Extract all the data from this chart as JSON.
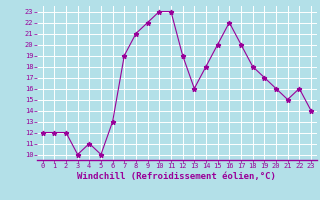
{
  "x": [
    0,
    1,
    2,
    3,
    4,
    5,
    6,
    7,
    8,
    9,
    10,
    11,
    12,
    13,
    14,
    15,
    16,
    17,
    18,
    19,
    20,
    21,
    22,
    23
  ],
  "y": [
    12,
    12,
    12,
    10,
    11,
    10,
    13,
    19,
    21,
    22,
    23,
    23,
    19,
    16,
    18,
    20,
    22,
    20,
    18,
    17,
    16,
    15,
    16,
    14
  ],
  "line_color": "#990099",
  "marker": "*",
  "marker_size": 3.5,
  "bg_color": "#b3e0e8",
  "grid_color": "#ffffff",
  "xlabel": "Windchill (Refroidissement éolien,°C)",
  "xlabel_color": "#990099",
  "ylim": [
    10,
    23
  ],
  "xlim": [
    -0.5,
    23.5
  ],
  "yticks": [
    10,
    11,
    12,
    13,
    14,
    15,
    16,
    17,
    18,
    19,
    20,
    21,
    22,
    23
  ],
  "xticks": [
    0,
    1,
    2,
    3,
    4,
    5,
    6,
    7,
    8,
    9,
    10,
    11,
    12,
    13,
    14,
    15,
    16,
    17,
    18,
    19,
    20,
    21,
    22,
    23
  ],
  "tick_color": "#990099",
  "spine_color": "#990099",
  "tick_fontsize": 5.0,
  "label_fontsize": 6.5
}
